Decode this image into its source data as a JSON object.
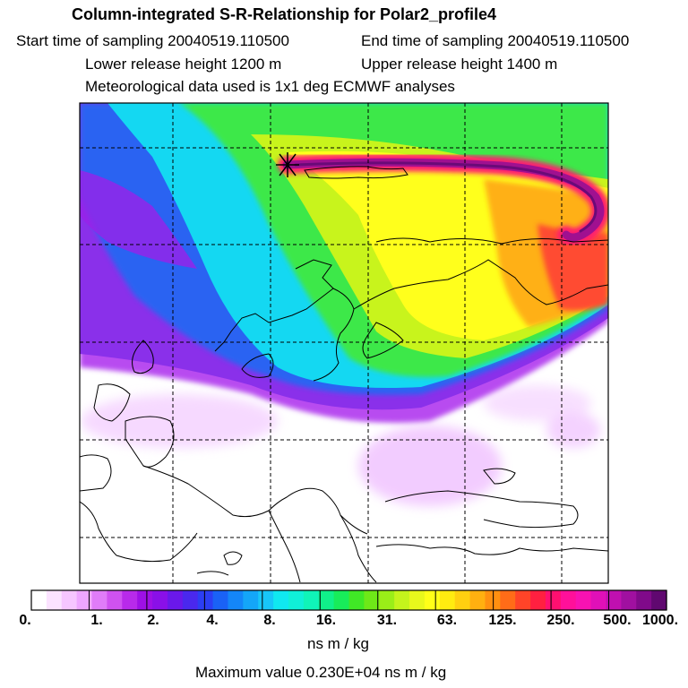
{
  "header": {
    "title": "Column-integrated S-R-Relationship for Polar2_profile4",
    "start_sampling": "Start time of sampling 20040519.110500",
    "end_sampling": "End time of sampling 20040519.110500",
    "lower_release": "Lower release height 1200 m",
    "upper_release": "Upper release height 1400 m",
    "met_data": "Meteorological data used is 1x1 deg ECMWF analyses"
  },
  "colorbar": {
    "labels": [
      "0.",
      "1.",
      "2.",
      "4.",
      "8.",
      "16.",
      "31.",
      "63.",
      "125.",
      "250.",
      "500.",
      "1000."
    ],
    "colors": [
      "#ffffff",
      "#fbe3ff",
      "#f6c6ff",
      "#eea6ff",
      "#e07cf8",
      "#cf52f0",
      "#b82aea",
      "#9e10e6",
      "#8a10e8",
      "#6a18ea",
      "#4a28ee",
      "#2c3ef4",
      "#1a62f6",
      "#1486f8",
      "#14a6f8",
      "#18c6f8",
      "#10e8f0",
      "#10f0d8",
      "#10f4b8",
      "#10f08a",
      "#18ec5a",
      "#40e826",
      "#6ee818",
      "#9aee18",
      "#c4f41c",
      "#e8f81c",
      "#ffff18",
      "#ffec10",
      "#ffd010",
      "#ffb010",
      "#ff9010",
      "#ff6c18",
      "#ff4428",
      "#ff2040",
      "#ff1070",
      "#ff109a",
      "#f812b2",
      "#e010b8",
      "#c010b0",
      "#a010a0",
      "#800a8a",
      "#600870"
    ]
  },
  "unit": "ns m / kg",
  "max_value": "Maximum value  0.230E+04 ns m / kg",
  "map": {
    "release_marker": "release-site-asterisk"
  }
}
